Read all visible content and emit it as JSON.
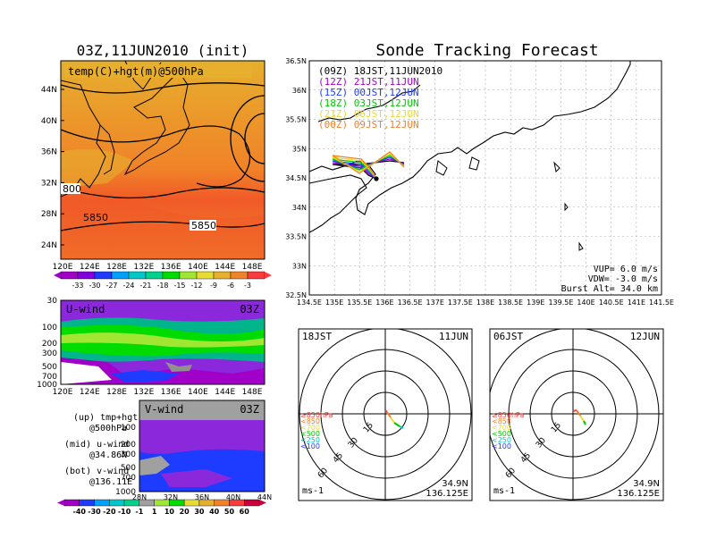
{
  "left_title": "03Z,11JUN2010 (init)",
  "main_title": "Sonde Tracking Forecast",
  "map500": {
    "label": "temp(C)+hgt(m)@500hPa",
    "lat_ticks": [
      "44N",
      "40N",
      "36N",
      "32N",
      "28N",
      "24N"
    ],
    "lon_ticks": [
      "120E",
      "124E",
      "128E",
      "132E",
      "136E",
      "140E",
      "144E",
      "148E"
    ],
    "contour_labels": [
      "800",
      "5850",
      "5850"
    ],
    "colorbar_labels": [
      "-33",
      "-30",
      "-27",
      "-24",
      "-21",
      "-18",
      "-15",
      "-12",
      "-9",
      "-6",
      "-3"
    ],
    "colorbar_colors": [
      "#a000c8",
      "#8200dc",
      "#1e3cff",
      "#00a0ff",
      "#00c8c8",
      "#00d28c",
      "#00dc00",
      "#a0e632",
      "#e6dc32",
      "#e6af2d",
      "#f08228",
      "#fa3c3c"
    ]
  },
  "uwind": {
    "label": "U-wind",
    "time": "03Z",
    "y_ticks": [
      "30",
      "100",
      "200",
      "300",
      "500",
      "700",
      "1000"
    ],
    "x_ticks": [
      "120E",
      "124E",
      "128E",
      "132E",
      "136E",
      "140E",
      "144E",
      "148E"
    ]
  },
  "vwind": {
    "label": "V-wind",
    "time": "03Z",
    "y_ticks": [
      "100",
      "200",
      "300",
      "500",
      "700",
      "1000"
    ],
    "x_ticks": [
      "28N",
      "32N",
      "36N",
      "40N",
      "44N"
    ]
  },
  "legend_text": {
    "up1": "(up) tmp+hgt",
    "up2": "@500hPa",
    "mid1": "(mid) u-wind",
    "mid2": "@34.86N",
    "bot1": "(bot) v-wind",
    "bot2": "@136.11E"
  },
  "wind_colorbar": {
    "labels": [
      "-40",
      "-30",
      "-20",
      "-10",
      "-1",
      "1",
      "10",
      "20",
      "30",
      "40",
      "50",
      "60"
    ],
    "colors": [
      "#a000c8",
      "#1e3cff",
      "#00a0ff",
      "#00c8c8",
      "#00d28c",
      "#a0a0a0",
      "#a0e632",
      "#00dc00",
      "#e6dc32",
      "#e6af2d",
      "#f08228",
      "#fa3c3c",
      "#c8003c"
    ]
  },
  "track_map": {
    "lat_ticks": [
      "36.5N",
      "36N",
      "35.5N",
      "35N",
      "34.5N",
      "34N",
      "33.5N",
      "33N",
      "32.5N"
    ],
    "lon_ticks": [
      "134.5E",
      "135E",
      "135.5E",
      "136E",
      "136.5E",
      "137E",
      "137.5E",
      "138E",
      "138.5E",
      "139E",
      "139.5E",
      "140E",
      "140.5E",
      "141E",
      "141.5E"
    ],
    "legend": [
      {
        "text": "(09Z)  18JST,11JUN2010",
        "color": "#000000"
      },
      {
        "text": "(12Z)  21JST,11JUN",
        "color": "#a000c8"
      },
      {
        "text": "(15Z)  00JST,12JUN",
        "color": "#1e3cff"
      },
      {
        "text": "(18Z)  03JST,12JUN",
        "color": "#00c800"
      },
      {
        "text": "(21Z)  06JST,12JUN",
        "color": "#e6dc32"
      },
      {
        "text": "(00Z)  09JST,12JUN",
        "color": "#f08228"
      }
    ],
    "params": {
      "vup": "VUP=  6.0 m/s",
      "vdw": "VDW= -3.0 m/s",
      "burst": "Burst Alt= 34.0 km"
    }
  },
  "hodo_left": {
    "time": "18JST",
    "date": "11JUN",
    "rings": [
      "15",
      "30",
      "45",
      "60"
    ],
    "unit": "ms-1",
    "lat": "34.9N",
    "lon": "136.125E",
    "levels": [
      {
        "text": "≥850hPa",
        "color": "#fa3c3c"
      },
      {
        "text": "<850",
        "color": "#f08228"
      },
      {
        "text": "<700",
        "color": "#e6dc32"
      },
      {
        "text": "<500",
        "color": "#00c800"
      },
      {
        "text": "<250",
        "color": "#00c8c8"
      },
      {
        "text": "<100",
        "color": "#1e3cff"
      }
    ]
  },
  "hodo_right": {
    "time": "06JST",
    "date": "12JUN",
    "rings": [
      "15",
      "30",
      "45",
      "60"
    ],
    "unit": "ms-1",
    "lat": "34.9N",
    "lon": "136.125E"
  }
}
